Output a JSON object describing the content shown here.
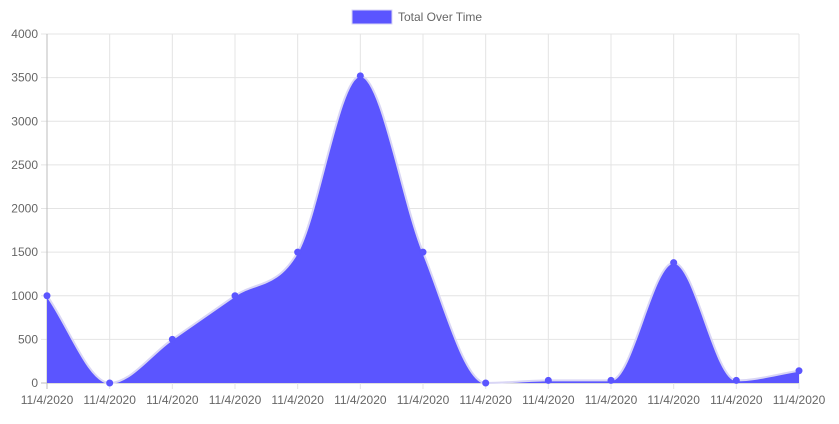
{
  "chart_data": {
    "type": "area",
    "title": "",
    "xlabel": "",
    "ylabel": "",
    "ylim": [
      0,
      4000
    ],
    "y_ticks": [
      0,
      500,
      1000,
      1500,
      2000,
      2500,
      3000,
      3500,
      4000
    ],
    "grid": true,
    "legend_position": "top-center",
    "categories": [
      "11/4/2020",
      "11/4/2020",
      "11/4/2020",
      "11/4/2020",
      "11/4/2020",
      "11/4/2020",
      "11/4/2020",
      "11/4/2020",
      "11/4/2020",
      "11/4/2020",
      "11/4/2020",
      "11/4/2020",
      "11/4/2020"
    ],
    "series": [
      {
        "name": "Total Over Time",
        "values": [
          1000,
          0,
          500,
          1000,
          1500,
          3520,
          1500,
          0,
          30,
          30,
          1380,
          30,
          140
        ],
        "fill_color": "#5b55ff",
        "line_color": "#d9d6f5",
        "point_color": "#5b55ff"
      }
    ]
  }
}
